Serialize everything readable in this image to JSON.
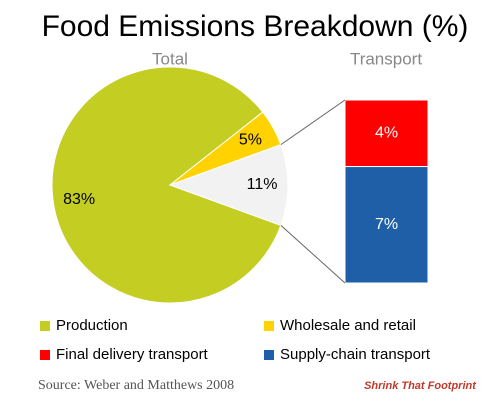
{
  "chart_data": {
    "type": "pie",
    "title": "Food Emissions Breakdown (%)",
    "pie_label": "Total",
    "bar_label": "Transport",
    "categories": [
      "Production",
      "Wholesale and retail",
      null
    ],
    "values": [
      83,
      5,
      11
    ],
    "value_labels": [
      "83%",
      "5%",
      "11%"
    ],
    "colors": [
      "#c3cd22",
      "#ffd200",
      "#f2f2f2"
    ],
    "breakdown": {
      "categories": [
        "Final delivery transport",
        "Supply-chain transport"
      ],
      "values": [
        4,
        7
      ],
      "value_labels": [
        "4%",
        "7%"
      ],
      "colors": [
        "#ff0000",
        "#1f5fa8"
      ]
    },
    "source": "Source:  Weber and Matthews 2008",
    "logo": "Shrink That Footprint"
  }
}
